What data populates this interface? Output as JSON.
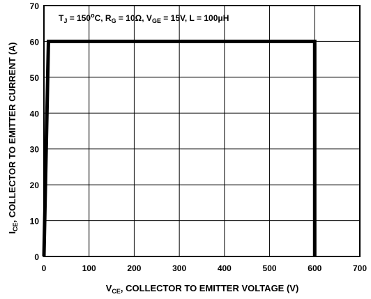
{
  "chart_data": {
    "type": "line",
    "title": "",
    "annotation": {
      "tj": "150",
      "rg": "10",
      "vge": "15V",
      "l": "100",
      "unit_h": "H"
    },
    "xlabel": {
      "main": "V",
      "sub": "CE",
      "rest": ", COLLECTOR TO EMITTER VOLTAGE (V)"
    },
    "ylabel": {
      "main": "I",
      "sub": "CE",
      "rest": ", COLLECTOR TO EMITTER CURRENT (A)"
    },
    "xlim": [
      0,
      700
    ],
    "ylim": [
      0,
      70
    ],
    "xticks": [
      0,
      100,
      200,
      300,
      400,
      500,
      600,
      700
    ],
    "yticks": [
      0,
      10,
      20,
      30,
      40,
      50,
      60,
      70
    ],
    "grid": true,
    "series": [
      {
        "x": [
          0,
          10,
          600,
          600
        ],
        "y": [
          0,
          60,
          60,
          0
        ]
      }
    ]
  }
}
